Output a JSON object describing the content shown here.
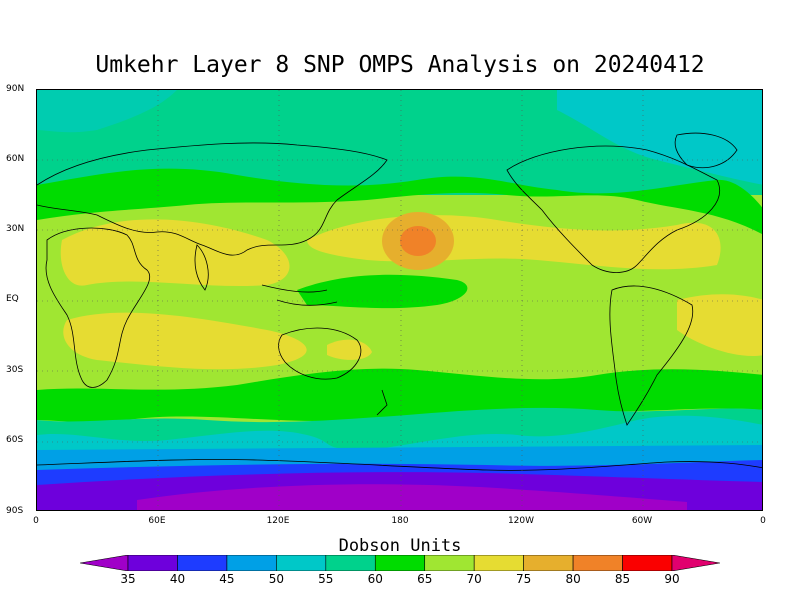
{
  "title": "Umkehr Layer 8 SNP OMPS Analysis on 20240412",
  "lat_labels": [
    "90N",
    "60N",
    "30N",
    "EQ",
    "30S",
    "60S",
    "90S"
  ],
  "lon_labels": [
    "0",
    "60E",
    "120E",
    "180",
    "120W",
    "60W",
    "0"
  ],
  "colorbar": {
    "label": "Dobson Units",
    "ticks": [
      "35",
      "40",
      "45",
      "50",
      "55",
      "60",
      "65",
      "70",
      "75",
      "80",
      "85",
      "90"
    ],
    "colors": [
      "#a000c8",
      "#6e00dc",
      "#1e3cff",
      "#00a0e6",
      "#00c8c8",
      "#00d28c",
      "#00dc00",
      "#a0e632",
      "#e6dc32",
      "#e6af2d",
      "#f08228",
      "#fa0000",
      "#e1006e"
    ]
  }
}
